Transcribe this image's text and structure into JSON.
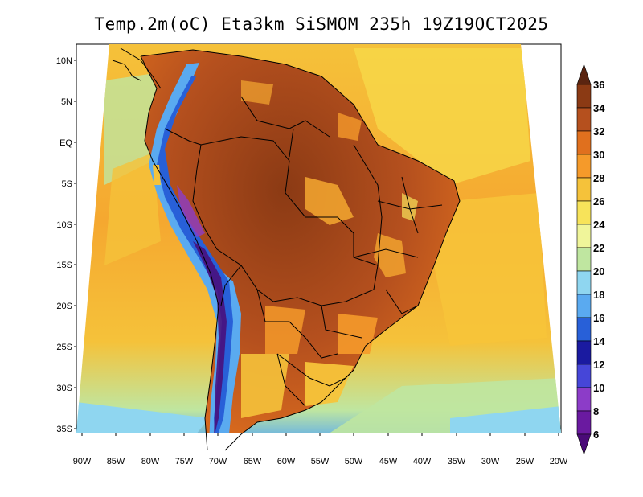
{
  "title": "Temp.2m(oC) Eta3km SiSMOM 235h 19Z19OCT2025",
  "map": {
    "lat_labels": [
      "10N",
      "5N",
      "EQ",
      "5S",
      "10S",
      "15S",
      "20S",
      "25S",
      "30S",
      "35S"
    ],
    "lon_labels": [
      "90W",
      "85W",
      "80W",
      "75W",
      "70W",
      "65W",
      "60W",
      "55W",
      "50W",
      "45W",
      "40W",
      "35W",
      "30W",
      "25W",
      "20W"
    ],
    "field": "2 m air temperature",
    "units": "oC"
  },
  "colorbar": {
    "labels": [
      "36",
      "34",
      "32",
      "30",
      "28",
      "26",
      "24",
      "22",
      "20",
      "18",
      "16",
      "14",
      "12",
      "10",
      "8",
      "6"
    ],
    "colors": [
      "#5a2410",
      "#8b3a14",
      "#b5501e",
      "#e0701e",
      "#f59a2a",
      "#f5c23a",
      "#f7e35a",
      "#f0f59a",
      "#bfe6a0",
      "#8fd6f0",
      "#5aaaf0",
      "#2860d8",
      "#1a1aa0",
      "#4646d8",
      "#8c3cc8",
      "#6a1aa0",
      "#4a0a78"
    ]
  }
}
